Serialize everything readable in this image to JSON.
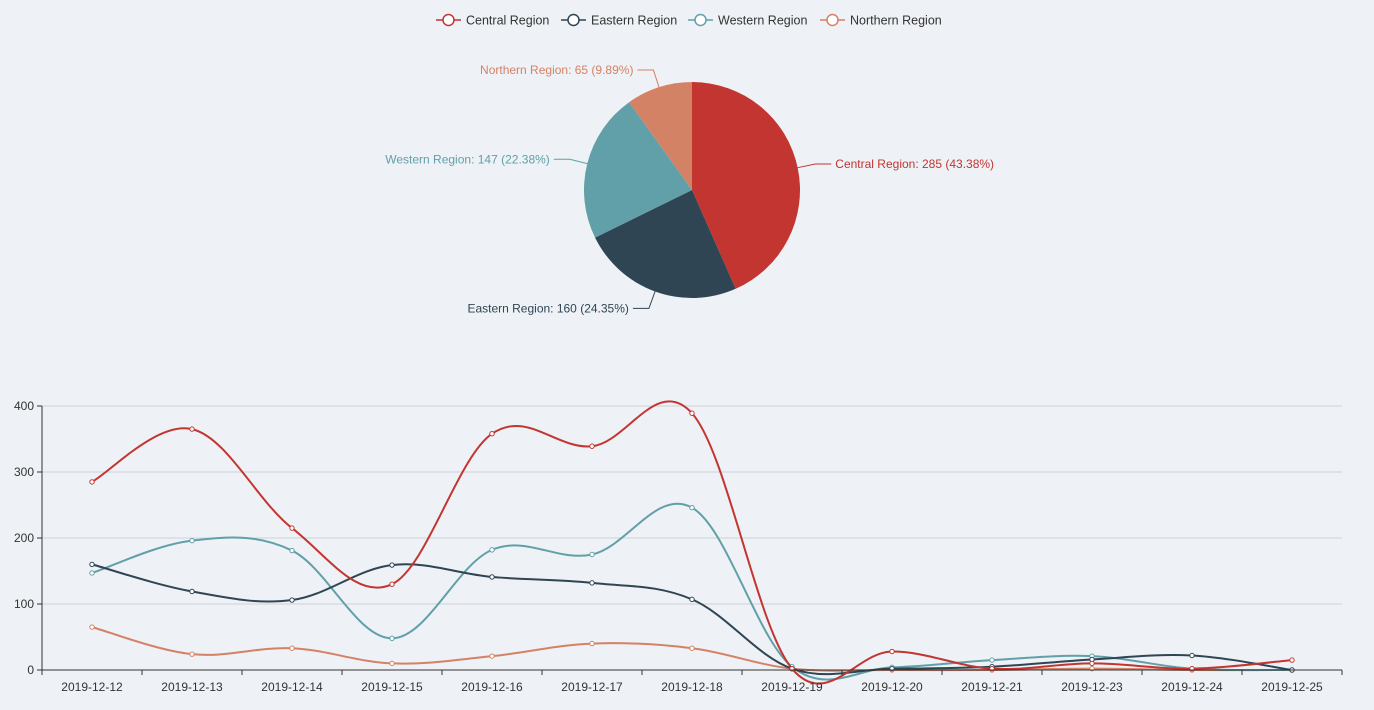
{
  "chart_data": [
    {
      "type": "pie",
      "slices": [
        {
          "name": "Central Region",
          "value": 285,
          "percent": "43.38%",
          "color": "#c23531",
          "label": "Central Region: 285 (43.38%)"
        },
        {
          "name": "Eastern Region",
          "value": 160,
          "percent": "24.35%",
          "color": "#2f4554",
          "label": "Eastern Region: 160 (24.35%)"
        },
        {
          "name": "Western Region",
          "value": 147,
          "percent": "22.38%",
          "color": "#61a0a8",
          "label": "Western Region: 147 (22.38%)"
        },
        {
          "name": "Northern Region",
          "value": 65,
          "percent": "9.89%",
          "color": "#d48265",
          "label": "Northern Region: 65 (9.89%)"
        }
      ]
    },
    {
      "type": "line",
      "smooth": true,
      "legend": {
        "position": "top-center",
        "entries": [
          "Central Region",
          "Eastern Region",
          "Western Region",
          "Northern Region"
        ]
      },
      "categories": [
        "2019-12-12",
        "2019-12-13",
        "2019-12-14",
        "2019-12-15",
        "2019-12-16",
        "2019-12-17",
        "2019-12-18",
        "2019-12-19",
        "2019-12-20",
        "2019-12-21",
        "2019-12-23",
        "2019-12-24",
        "2019-12-25"
      ],
      "ylim": [
        0,
        400
      ],
      "yticks": [
        0,
        100,
        200,
        300,
        400
      ],
      "grid": true,
      "series": [
        {
          "name": "Central Region",
          "color": "#c23531",
          "values": [
            285,
            365,
            215,
            130,
            358,
            339,
            389,
            2,
            28,
            2,
            10,
            2,
            15
          ]
        },
        {
          "name": "Eastern Region",
          "color": "#2f4554",
          "values": [
            160,
            119,
            106,
            159,
            141,
            132,
            107,
            2,
            2,
            5,
            16,
            22,
            0
          ]
        },
        {
          "name": "Western Region",
          "color": "#61a0a8",
          "values": [
            147,
            196,
            181,
            48,
            182,
            175,
            246,
            5,
            4,
            15,
            21,
            2,
            0
          ]
        },
        {
          "name": "Northern Region",
          "color": "#d48265",
          "values": [
            65,
            24,
            33,
            10,
            21,
            40,
            33,
            2,
            0,
            0,
            2,
            0,
            0
          ]
        }
      ]
    }
  ]
}
